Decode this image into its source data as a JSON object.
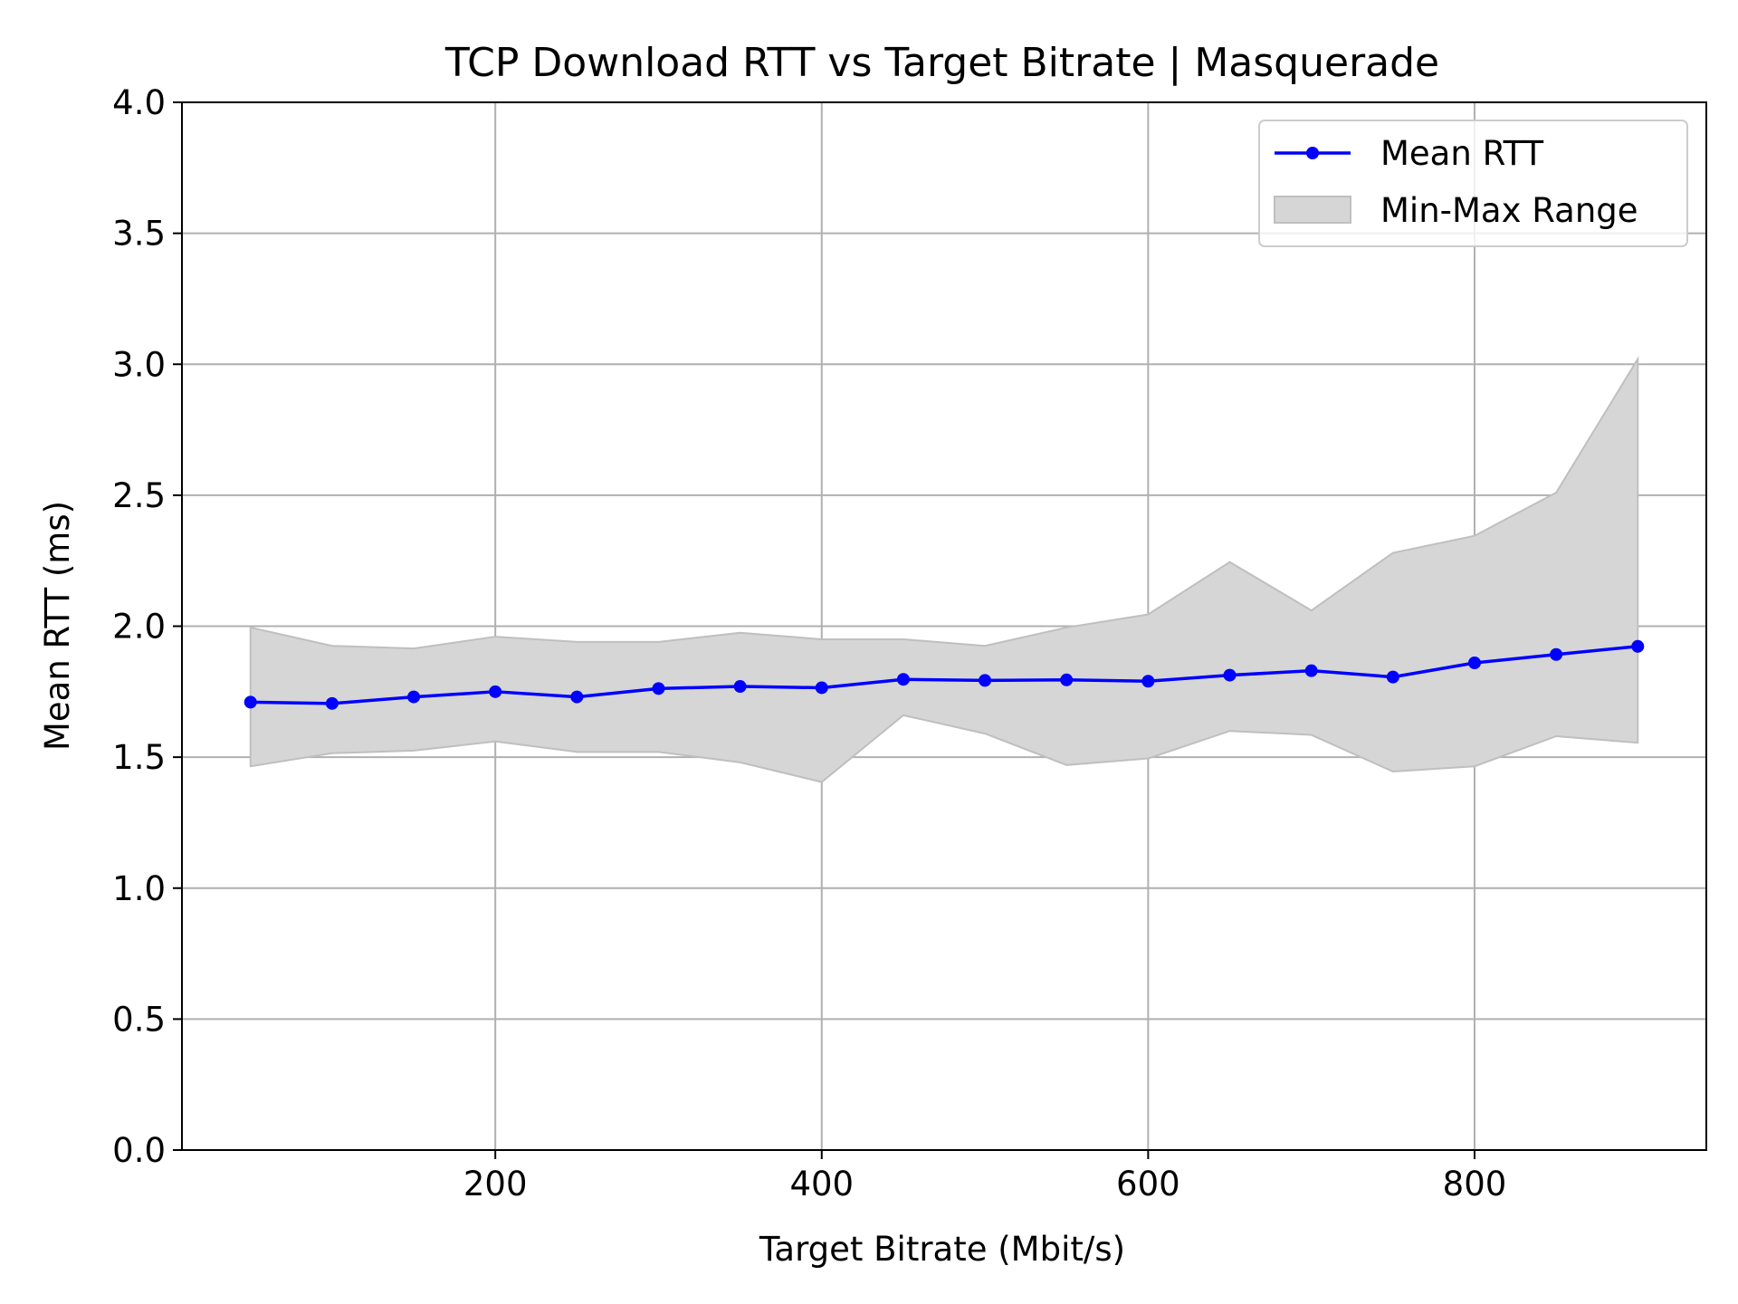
{
  "chart_data": {
    "type": "line",
    "title": "TCP Download RTT vs Target Bitrate | Masquerade",
    "xlabel": "Target Bitrate (Mbit/s)",
    "ylabel": "Mean RTT (ms)",
    "xlim": [
      8,
      942
    ],
    "ylim": [
      0,
      4.0
    ],
    "xticks": [
      200,
      400,
      600,
      800
    ],
    "xtick_labels": [
      "200",
      "400",
      "600",
      "800"
    ],
    "yticks": [
      0,
      0.5,
      1.0,
      1.5,
      2.0,
      2.5,
      3.0,
      3.5,
      4.0
    ],
    "ytick_labels": [
      "0.0",
      "0.5",
      "1.0",
      "1.5",
      "2.0",
      "2.5",
      "3.0",
      "3.5",
      "4.0"
    ],
    "grid": true,
    "legend_position": "top-right",
    "x": [
      50,
      100,
      150,
      200,
      250,
      300,
      350,
      400,
      450,
      500,
      550,
      600,
      650,
      700,
      750,
      800,
      850,
      900
    ],
    "series": [
      {
        "name": "Mean RTT",
        "color": "#0000ff",
        "marker": "circle",
        "values": [
          1.71,
          1.705,
          1.73,
          1.75,
          1.73,
          1.762,
          1.77,
          1.765,
          1.797,
          1.793,
          1.795,
          1.79,
          1.813,
          1.83,
          1.806,
          1.86,
          1.892,
          1.923
        ]
      }
    ],
    "band": {
      "name": "Min-Max Range",
      "color": "#d6d6d6",
      "edge_color": "#bfbfbf",
      "min": [
        1.465,
        1.515,
        1.525,
        1.56,
        1.52,
        1.52,
        1.48,
        1.405,
        1.66,
        1.59,
        1.47,
        1.495,
        1.6,
        1.585,
        1.445,
        1.465,
        1.58,
        1.555
      ],
      "max": [
        1.995,
        1.925,
        1.915,
        1.96,
        1.94,
        1.94,
        1.975,
        1.95,
        1.95,
        1.925,
        1.995,
        2.045,
        2.245,
        2.06,
        2.28,
        2.345,
        2.51,
        3.02
      ]
    }
  }
}
